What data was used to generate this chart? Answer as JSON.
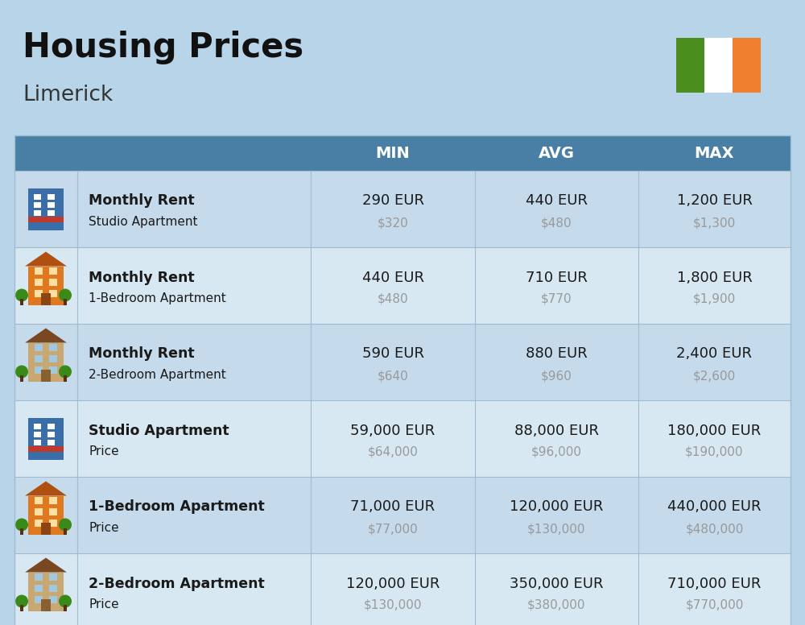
{
  "title": "Housing Prices",
  "subtitle": "Limerick",
  "bg_color": "#b8d4e8",
  "header_color": "#4a7fa5",
  "header_text_color": "#ffffff",
  "row_colors": [
    "#c5daea",
    "#d8e8f2"
  ],
  "col_divider_color": "#a0bcd0",
  "text_color_main": "#1a1a1a",
  "text_color_secondary": "#999999",
  "columns": [
    "MIN",
    "AVG",
    "MAX"
  ],
  "rows": [
    {
      "label_bold": "Monthly Rent",
      "label_sub": "Studio Apartment",
      "min_eur": "290 EUR",
      "min_usd": "$320",
      "avg_eur": "440 EUR",
      "avg_usd": "$480",
      "max_eur": "1,200 EUR",
      "max_usd": "$1,300",
      "icon_type": "studio_blue"
    },
    {
      "label_bold": "Monthly Rent",
      "label_sub": "1-Bedroom Apartment",
      "min_eur": "440 EUR",
      "min_usd": "$480",
      "avg_eur": "710 EUR",
      "avg_usd": "$770",
      "max_eur": "1,800 EUR",
      "max_usd": "$1,900",
      "icon_type": "one_bed_orange"
    },
    {
      "label_bold": "Monthly Rent",
      "label_sub": "2-Bedroom Apartment",
      "min_eur": "590 EUR",
      "min_usd": "$640",
      "avg_eur": "880 EUR",
      "avg_usd": "$960",
      "max_eur": "2,400 EUR",
      "max_usd": "$2,600",
      "icon_type": "two_bed_tan"
    },
    {
      "label_bold": "Studio Apartment",
      "label_sub": "Price",
      "min_eur": "59,000 EUR",
      "min_usd": "$64,000",
      "avg_eur": "88,000 EUR",
      "avg_usd": "$96,000",
      "max_eur": "180,000 EUR",
      "max_usd": "$190,000",
      "icon_type": "studio_blue"
    },
    {
      "label_bold": "1-Bedroom Apartment",
      "label_sub": "Price",
      "min_eur": "71,000 EUR",
      "min_usd": "$77,000",
      "avg_eur": "120,000 EUR",
      "avg_usd": "$130,000",
      "max_eur": "440,000 EUR",
      "max_usd": "$480,000",
      "icon_type": "one_bed_orange"
    },
    {
      "label_bold": "2-Bedroom Apartment",
      "label_sub": "Price",
      "min_eur": "120,000 EUR",
      "min_usd": "$130,000",
      "avg_eur": "350,000 EUR",
      "avg_usd": "$380,000",
      "max_eur": "710,000 EUR",
      "max_usd": "$770,000",
      "icon_type": "two_bed_tan"
    }
  ],
  "flag_green": "#4a8f1e",
  "flag_white": "#ffffff",
  "flag_orange": "#f08030"
}
